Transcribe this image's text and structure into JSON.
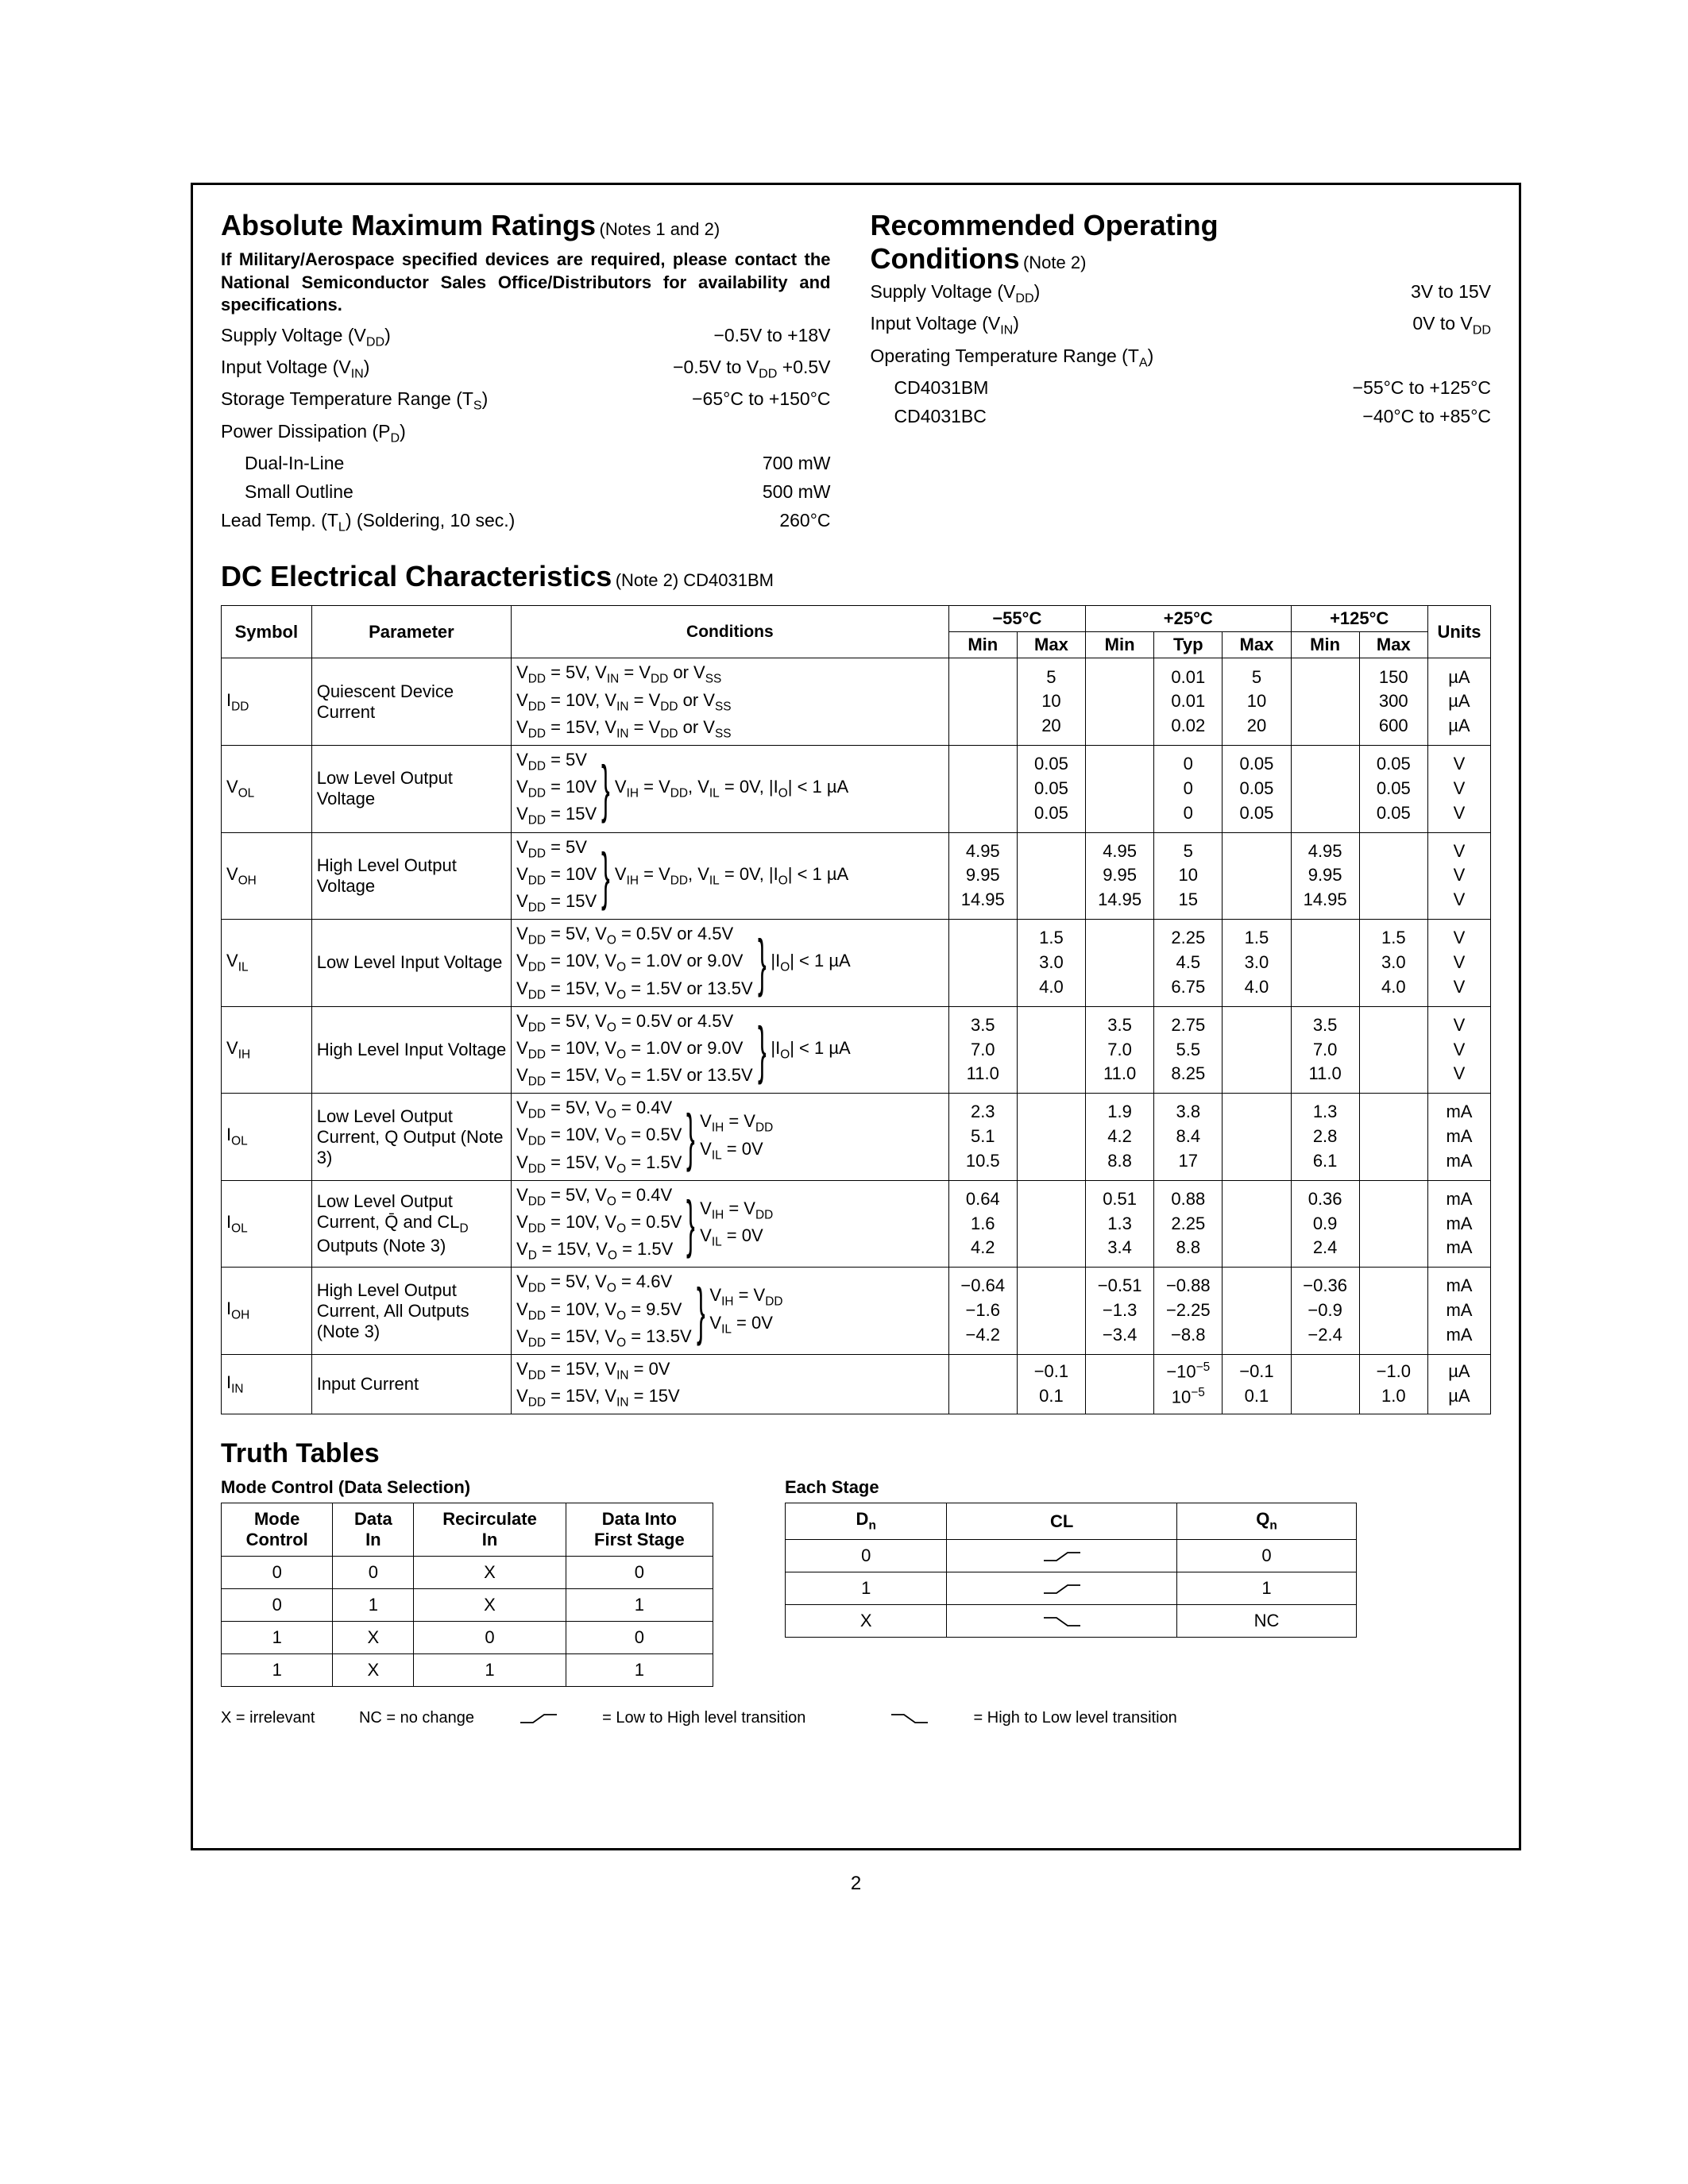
{
  "abs_max": {
    "title": "Absolute Maximum Ratings",
    "notes": "(Notes 1 and 2)",
    "military_note": "If Military/Aerospace specified devices are required, please contact the National Semiconductor Sales Office/Distributors for availability and specifications.",
    "rows": [
      {
        "label": "Supply Voltage (V<sub>DD</sub>)",
        "value": "−0.5V to +18V"
      },
      {
        "label": "Input Voltage (V<sub>IN</sub>)",
        "value": "−0.5V to V<sub>DD</sub> +0.5V"
      },
      {
        "label": "Storage Temperature Range (T<sub>S</sub>)",
        "value": "−65°C to +150°C"
      },
      {
        "label": "Power Dissipation (P<sub>D</sub>)",
        "value": ""
      },
      {
        "label": "Dual-In-Line",
        "value": "700 mW",
        "indent": true
      },
      {
        "label": "Small Outline",
        "value": "500 mW",
        "indent": true
      },
      {
        "label": "Lead Temp. (T<sub>L</sub>) (Soldering, 10 sec.)",
        "value": "260°C"
      }
    ]
  },
  "rec_op": {
    "title": "Recommended Operating",
    "title2": "Conditions",
    "notes": "(Note 2)",
    "rows": [
      {
        "label": "Supply Voltage (V<sub>DD</sub>)",
        "value": "3V to 15V"
      },
      {
        "label": "Input Voltage (V<sub>IN</sub>)",
        "value": "0V to V<sub>DD</sub>"
      },
      {
        "label": "Operating Temperature Range (T<sub>A</sub>)",
        "value": ""
      },
      {
        "label": "CD4031BM",
        "value": "−55°C to +125°C",
        "indent": true
      },
      {
        "label": "CD4031BC",
        "value": "−40°C to +85°C",
        "indent": true
      }
    ]
  },
  "dc_title": "DC Electrical Characteristics",
  "dc_notes": "(Note 2) CD4031BM",
  "dc_headers": {
    "symbol": "Symbol",
    "parameter": "Parameter",
    "conditions": "Conditions",
    "t1": "−55°C",
    "t2": "+25°C",
    "t3": "+125°C",
    "min": "Min",
    "typ": "Typ",
    "max": "Max",
    "units": "Units"
  },
  "dc_rows": [
    {
      "symbol": "I<sub>DD</sub>",
      "param": "Quiescent Device Current",
      "cond_lines": [
        "V<sub>DD</sub> = 5V, V<sub>IN</sub> = V<sub>DD</sub> or V<sub>SS</sub>",
        "V<sub>DD</sub> = 10V, V<sub>IN</sub> = V<sub>DD</sub> or V<sub>SS</sub>",
        "V<sub>DD</sub> = 15V, V<sub>IN</sub> = V<sub>DD</sub> or V<sub>SS</sub>"
      ],
      "cond_brace": false,
      "cond_suffix": "",
      "m55_min": [
        "",
        "",
        ""
      ],
      "m55_max": [
        "5",
        "10",
        "20"
      ],
      "p25_min": [
        "",
        "",
        ""
      ],
      "p25_typ": [
        "0.01",
        "0.01",
        "0.02"
      ],
      "p25_max": [
        "5",
        "10",
        "20"
      ],
      "p125_min": [
        "",
        "",
        ""
      ],
      "p125_max": [
        "150",
        "300",
        "600"
      ],
      "units": [
        "µA",
        "µA",
        "µA"
      ]
    },
    {
      "symbol": "V<sub>OL</sub>",
      "param": "Low Level Output Voltage",
      "cond_lines": [
        "V<sub>DD</sub> = 5V",
        "V<sub>DD</sub> = 10V",
        "V<sub>DD</sub> = 15V"
      ],
      "cond_brace": true,
      "cond_suffix": "V<sub>IH</sub> = V<sub>DD</sub>, V<sub>IL</sub> = 0V, |I<sub>O</sub>| < 1 µA",
      "m55_min": [
        "",
        "",
        ""
      ],
      "m55_max": [
        "0.05",
        "0.05",
        "0.05"
      ],
      "p25_min": [
        "",
        "",
        ""
      ],
      "p25_typ": [
        "0",
        "0",
        "0"
      ],
      "p25_max": [
        "0.05",
        "0.05",
        "0.05"
      ],
      "p125_min": [
        "",
        "",
        ""
      ],
      "p125_max": [
        "0.05",
        "0.05",
        "0.05"
      ],
      "units": [
        "V",
        "V",
        "V"
      ]
    },
    {
      "symbol": "V<sub>OH</sub>",
      "param": "High Level Output Voltage",
      "cond_lines": [
        "V<sub>DD</sub> = 5V",
        "V<sub>DD</sub> = 10V",
        "V<sub>DD</sub> = 15V"
      ],
      "cond_brace": true,
      "cond_suffix": "V<sub>IH</sub> = V<sub>DD</sub>, V<sub>IL</sub> = 0V, |I<sub>O</sub>| < 1 µA",
      "m55_min": [
        "4.95",
        "9.95",
        "14.95"
      ],
      "m55_max": [
        "",
        "",
        ""
      ],
      "p25_min": [
        "4.95",
        "9.95",
        "14.95"
      ],
      "p25_typ": [
        "5",
        "10",
        "15"
      ],
      "p25_max": [
        "",
        "",
        ""
      ],
      "p125_min": [
        "4.95",
        "9.95",
        "14.95"
      ],
      "p125_max": [
        "",
        "",
        ""
      ],
      "units": [
        "V",
        "V",
        "V"
      ]
    },
    {
      "symbol": "V<sub>IL</sub>",
      "param": "Low Level Input Voltage",
      "cond_lines": [
        "V<sub>DD</sub> = 5V, V<sub>O</sub> = 0.5V or 4.5V",
        "V<sub>DD</sub> = 10V, V<sub>O</sub> = 1.0V or 9.0V",
        "V<sub>DD</sub> = 15V, V<sub>O</sub> = 1.5V or 13.5V"
      ],
      "cond_brace": true,
      "cond_suffix": "|I<sub>O</sub>| < 1 µA",
      "m55_min": [
        "",
        "",
        ""
      ],
      "m55_max": [
        "1.5",
        "3.0",
        "4.0"
      ],
      "p25_min": [
        "",
        "",
        ""
      ],
      "p25_typ": [
        "2.25",
        "4.5",
        "6.75"
      ],
      "p25_max": [
        "1.5",
        "3.0",
        "4.0"
      ],
      "p125_min": [
        "",
        "",
        ""
      ],
      "p125_max": [
        "1.5",
        "3.0",
        "4.0"
      ],
      "units": [
        "V",
        "V",
        "V"
      ]
    },
    {
      "symbol": "V<sub>IH</sub>",
      "param": "High Level Input Voltage",
      "cond_lines": [
        "V<sub>DD</sub> = 5V, V<sub>O</sub> = 0.5V or 4.5V",
        "V<sub>DD</sub> = 10V, V<sub>O</sub> = 1.0V or 9.0V",
        "V<sub>DD</sub> = 15V, V<sub>O</sub> = 1.5V or 13.5V"
      ],
      "cond_brace": true,
      "cond_suffix": "|I<sub>O</sub>| < 1 µA",
      "m55_min": [
        "3.5",
        "7.0",
        "11.0"
      ],
      "m55_max": [
        "",
        "",
        ""
      ],
      "p25_min": [
        "3.5",
        "7.0",
        "11.0"
      ],
      "p25_typ": [
        "2.75",
        "5.5",
        "8.25"
      ],
      "p25_max": [
        "",
        "",
        ""
      ],
      "p125_min": [
        "3.5",
        "7.0",
        "11.0"
      ],
      "p125_max": [
        "",
        "",
        ""
      ],
      "units": [
        "V",
        "V",
        "V"
      ]
    },
    {
      "symbol": "I<sub>OL</sub>",
      "param": "Low Level Output Current, Q Output (Note 3)",
      "cond_lines": [
        "V<sub>DD</sub> = 5V, V<sub>O</sub> = 0.4V",
        "V<sub>DD</sub> = 10V, V<sub>O</sub> = 0.5V",
        "V<sub>DD</sub> = 15V, V<sub>O</sub> = 1.5V"
      ],
      "cond_brace": true,
      "cond_suffix": "V<sub>IH</sub> = V<sub>DD</sub><br>V<sub>IL</sub> = 0V",
      "m55_min": [
        "2.3",
        "5.1",
        "10.5"
      ],
      "m55_max": [
        "",
        "",
        ""
      ],
      "p25_min": [
        "1.9",
        "4.2",
        "8.8"
      ],
      "p25_typ": [
        "3.8",
        "8.4",
        "17"
      ],
      "p25_max": [
        "",
        "",
        ""
      ],
      "p125_min": [
        "1.3",
        "2.8",
        "6.1"
      ],
      "p125_max": [
        "",
        "",
        ""
      ],
      "units": [
        "mA",
        "mA",
        "mA"
      ]
    },
    {
      "symbol": "I<sub>OL</sub>",
      "param": "Low Level Output Current, Q̄ and CL<sub>D</sub> Outputs (Note 3)",
      "cond_lines": [
        "V<sub>DD</sub> = 5V, V<sub>O</sub> = 0.4V",
        "V<sub>DD</sub> = 10V, V<sub>O</sub> = 0.5V",
        "V<sub>D</sub> = 15V, V<sub>O</sub> = 1.5V"
      ],
      "cond_brace": true,
      "cond_suffix": "V<sub>IH</sub> = V<sub>DD</sub><br>V<sub>IL</sub> = 0V",
      "m55_min": [
        "0.64",
        "1.6",
        "4.2"
      ],
      "m55_max": [
        "",
        "",
        ""
      ],
      "p25_min": [
        "0.51",
        "1.3",
        "3.4"
      ],
      "p25_typ": [
        "0.88",
        "2.25",
        "8.8"
      ],
      "p25_max": [
        "",
        "",
        ""
      ],
      "p125_min": [
        "0.36",
        "0.9",
        "2.4"
      ],
      "p125_max": [
        "",
        "",
        ""
      ],
      "units": [
        "mA",
        "mA",
        "mA"
      ]
    },
    {
      "symbol": "I<sub>OH</sub>",
      "param": "High Level Output Current, All Outputs (Note 3)",
      "cond_lines": [
        "V<sub>DD</sub> = 5V, V<sub>O</sub> = 4.6V",
        "V<sub>DD</sub> = 10V, V<sub>O</sub> = 9.5V",
        "V<sub>DD</sub> = 15V, V<sub>O</sub> = 13.5V"
      ],
      "cond_brace": true,
      "cond_suffix": "V<sub>IH</sub> = V<sub>DD</sub><br>V<sub>IL</sub> = 0V",
      "m55_min": [
        "−0.64",
        "−1.6",
        "−4.2"
      ],
      "m55_max": [
        "",
        "",
        ""
      ],
      "p25_min": [
        "−0.51",
        "−1.3",
        "−3.4"
      ],
      "p25_typ": [
        "−0.88",
        "−2.25",
        "−8.8"
      ],
      "p25_max": [
        "",
        "",
        ""
      ],
      "p125_min": [
        "−0.36",
        "−0.9",
        "−2.4"
      ],
      "p125_max": [
        "",
        "",
        ""
      ],
      "units": [
        "mA",
        "mA",
        "mA"
      ]
    },
    {
      "symbol": "I<sub>IN</sub>",
      "param": "Input Current",
      "cond_lines": [
        "V<sub>DD</sub> = 15V, V<sub>IN</sub> = 0V",
        "V<sub>DD</sub> = 15V, V<sub>IN</sub> = 15V"
      ],
      "cond_brace": false,
      "cond_suffix": "",
      "m55_min": [
        "",
        ""
      ],
      "m55_max": [
        "−0.1",
        "0.1"
      ],
      "p25_min": [
        "",
        ""
      ],
      "p25_typ": [
        "−10<sup>−5</sup>",
        "10<sup>−5</sup>"
      ],
      "p25_max": [
        "−0.1",
        "0.1"
      ],
      "p125_min": [
        "",
        ""
      ],
      "p125_max": [
        "−1.0",
        "1.0"
      ],
      "units": [
        "µA",
        "µA"
      ]
    }
  ],
  "truth": {
    "title": "Truth Tables",
    "t1_caption": "Mode Control (Data Selection)",
    "t1_headers": [
      "Mode\nControl",
      "Data\nIn",
      "Recirculate\nIn",
      "Data Into\nFirst Stage"
    ],
    "t1_rows": [
      [
        "0",
        "0",
        "X",
        "0"
      ],
      [
        "0",
        "1",
        "X",
        "1"
      ],
      [
        "1",
        "X",
        "0",
        "0"
      ],
      [
        "1",
        "X",
        "1",
        "1"
      ]
    ],
    "t2_caption": "Each Stage",
    "t2_headers": [
      "D<sub>n</sub>",
      "CL",
      "Q<sub>n</sub>"
    ],
    "t2_rows": [
      [
        "0",
        "rise",
        "0"
      ],
      [
        "1",
        "rise",
        "1"
      ],
      [
        "X",
        "fall",
        "NC"
      ]
    ]
  },
  "legend": {
    "x": "X = irrelevant",
    "nc": "NC = no change",
    "rise": " = Low to High level transition",
    "fall": " = High to Low level transition"
  },
  "page_number": "2"
}
